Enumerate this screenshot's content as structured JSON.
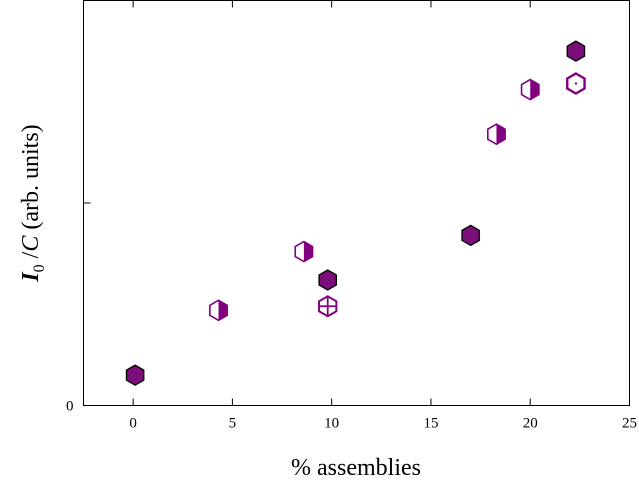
{
  "chart_data": {
    "type": "scatter",
    "title": "",
    "xlabel": "% assemblies",
    "ylabel_parts": {
      "italic1": "I",
      "sub": "0",
      "mid": " /",
      "italic2": "C",
      "rest": " (arb. units)"
    },
    "xlim": [
      -2.5,
      25
    ],
    "ylim": [
      0,
      1
    ],
    "x_ticks": [
      0,
      5,
      10,
      15,
      20,
      25
    ],
    "y_tick_labels": [
      {
        "value": 0,
        "label": "0"
      }
    ],
    "y_unlabeled_ticks": [
      0.5
    ],
    "grid": false,
    "legend": "none",
    "colors": {
      "marker": "#800080",
      "fill": "#7a0f7a",
      "axis": "#000000"
    },
    "series": [
      {
        "style": "filled",
        "points": [
          [
            0.1,
            0.075
          ],
          [
            9.8,
            0.31
          ],
          [
            17.0,
            0.42
          ],
          [
            22.3,
            0.875
          ]
        ]
      },
      {
        "style": "half-filled",
        "points": [
          [
            4.3,
            0.235
          ],
          [
            8.6,
            0.38
          ],
          [
            18.3,
            0.67
          ],
          [
            20.0,
            0.78
          ]
        ]
      },
      {
        "style": "crossed",
        "points": [
          [
            9.8,
            0.245
          ]
        ]
      },
      {
        "style": "dotted",
        "points": [
          [
            22.3,
            0.795
          ]
        ]
      }
    ]
  }
}
